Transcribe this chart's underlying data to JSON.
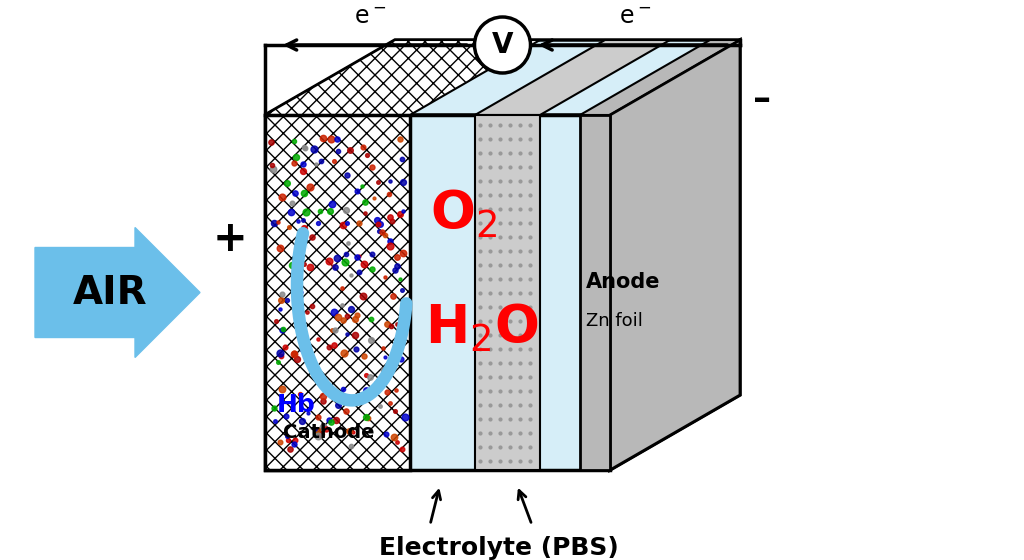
{
  "bg_color": "#ffffff",
  "box_line_color": "#000000",
  "box_fill_light_blue": "#d6eef8",
  "box_fill_gray": "#b8b8b8",
  "sep_fill_gray": "#c8c8c8",
  "air_arrow_color": "#6bbfea",
  "o2_color": "#ff0000",
  "h2o_color": "#ff0000",
  "hb_color": "#0000ff",
  "air_text": "AIR",
  "o2_text": "O$_2$",
  "h2o_text": "H$_2$O",
  "hb_text": "Hb",
  "cathode_text": "Cathode",
  "anode_text": "Anode",
  "zn_text": "Zn foil",
  "electrolyte_text": "Electrolyte (PBS)",
  "e_left": "e$^-$",
  "e_right": "e$^-$",
  "voltmeter_text": "V",
  "plus_text": "+",
  "minus_text": "–"
}
